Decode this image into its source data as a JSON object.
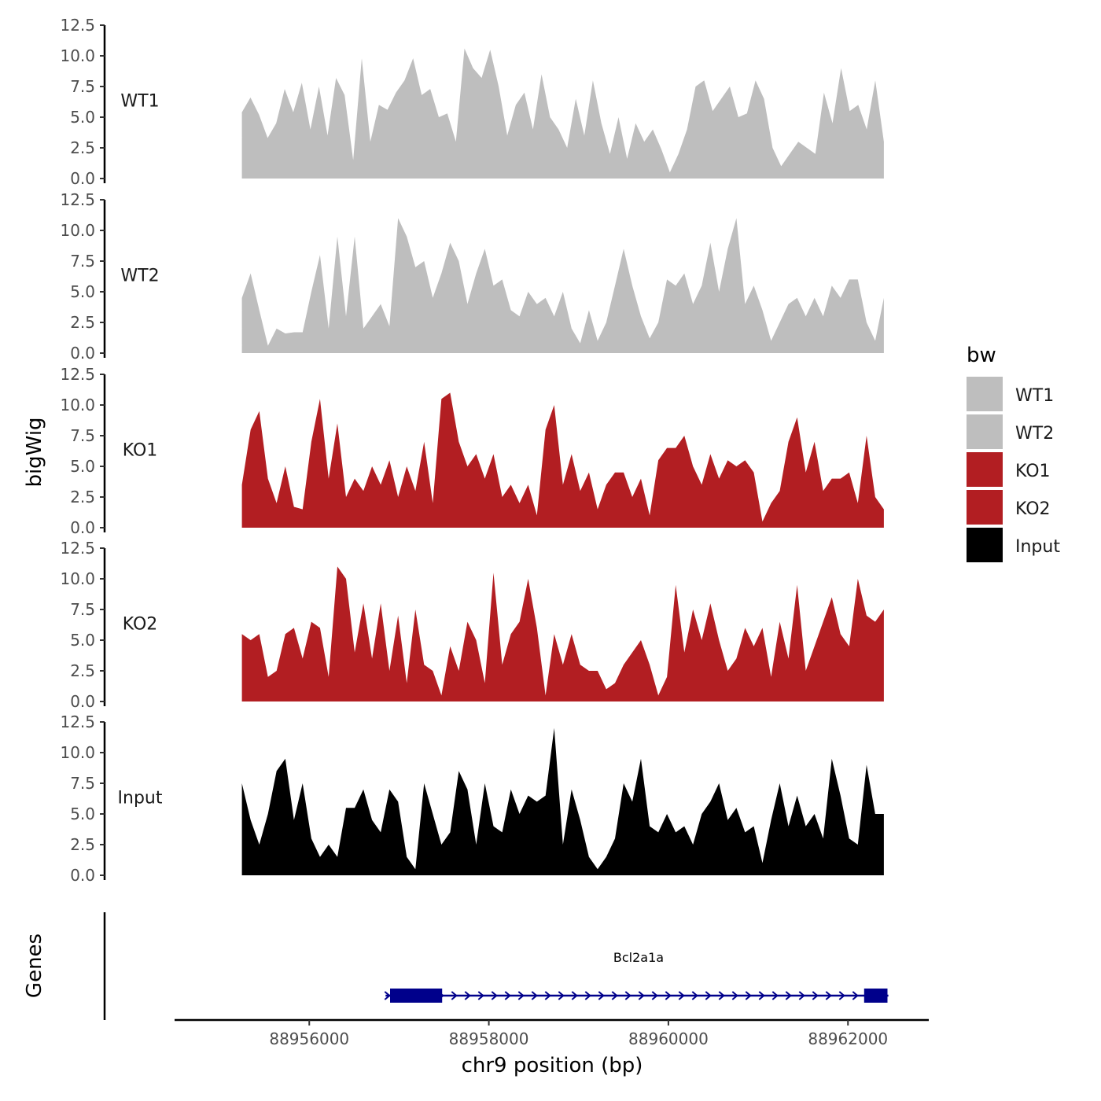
{
  "chart_data": {
    "type": "area",
    "xlabel": "chr9 position (bp)",
    "ylabel": "bigWig",
    "genes_label": "Genes",
    "xlim": [
      88954500,
      88962900
    ],
    "xticks": [
      88956000,
      88958000,
      88960000,
      88962000
    ],
    "xtick_labels": [
      "88956000",
      "88958000",
      "88960000",
      "88962000"
    ],
    "ylim": [
      0,
      12.5
    ],
    "yticks": [
      0,
      2.5,
      5,
      7.5,
      10,
      12.5
    ],
    "ytick_labels": [
      "0.0",
      "2.5",
      "5.0",
      "7.5",
      "10.0",
      "12.5"
    ],
    "track_start": 88955250,
    "track_end": 88962400,
    "series": [
      {
        "name": "WT1",
        "color": "#bebebe",
        "values": [
          5.4,
          6.6,
          5.2,
          3.3,
          4.5,
          7.3,
          5.4,
          7.8,
          4.0,
          7.5,
          3.5,
          8.2,
          6.8,
          1.5,
          9.8,
          3.0,
          6.0,
          5.6,
          7.0,
          8.0,
          9.8,
          6.8,
          7.3,
          5.0,
          5.3,
          3.0,
          10.6,
          9.0,
          8.2,
          10.5,
          7.5,
          3.5,
          6.0,
          7.0,
          4.0,
          8.5,
          5.0,
          4.0,
          2.5,
          6.5,
          3.5,
          8.0,
          4.5,
          2.0,
          5.0,
          1.6,
          4.5,
          3.0,
          4.0,
          2.4,
          0.5,
          2.0,
          4.0,
          7.5,
          8.0,
          5.5,
          6.5,
          7.5,
          5.0,
          5.3,
          8.0,
          6.5,
          2.5,
          1.0,
          2.0,
          3.0,
          2.5,
          2.0,
          7.0,
          4.5,
          9.0,
          5.5,
          6.0,
          4.0,
          8.0,
          3.0
        ]
      },
      {
        "name": "WT2",
        "color": "#bebebe",
        "values": [
          4.5,
          6.5,
          3.5,
          0.6,
          2.0,
          1.6,
          1.7,
          1.7,
          5.0,
          8.0,
          2.0,
          9.5,
          3.0,
          9.5,
          2.0,
          3.0,
          4.0,
          2.2,
          11.0,
          9.5,
          7.0,
          7.5,
          4.5,
          6.5,
          9.0,
          7.5,
          4.0,
          6.5,
          8.5,
          5.5,
          6.0,
          3.5,
          3.0,
          5.0,
          4.0,
          4.5,
          3.0,
          5.0,
          2.0,
          0.8,
          3.5,
          1.0,
          2.5,
          5.5,
          8.5,
          5.5,
          3.0,
          1.2,
          2.5,
          6.0,
          5.5,
          6.5,
          4.0,
          5.5,
          9.0,
          5.0,
          8.5,
          11.0,
          4.0,
          5.5,
          3.5,
          1.0,
          2.5,
          4.0,
          4.5,
          3.0,
          4.5,
          3.0,
          5.5,
          4.5,
          6.0,
          6.0,
          2.5,
          1.0,
          4.5
        ]
      },
      {
        "name": "KO1",
        "color": "#b21e22",
        "values": [
          3.5,
          8.0,
          9.5,
          4.0,
          2.0,
          5.0,
          1.7,
          1.5,
          7.0,
          10.5,
          4.0,
          8.5,
          2.5,
          4.0,
          3.0,
          5.0,
          3.5,
          5.5,
          2.5,
          5.0,
          3.0,
          7.0,
          2.0,
          10.5,
          11.0,
          7.0,
          5.0,
          6.0,
          4.0,
          6.0,
          2.5,
          3.5,
          2.0,
          3.5,
          1.0,
          8.0,
          10.0,
          3.5,
          6.0,
          3.0,
          4.5,
          1.5,
          3.5,
          4.5,
          4.5,
          2.5,
          4.0,
          1.0,
          5.5,
          6.5,
          6.5,
          7.5,
          5.0,
          3.5,
          6.0,
          4.0,
          5.5,
          5.0,
          5.5,
          4.5,
          0.5,
          2.0,
          3.0,
          7.0,
          9.0,
          4.5,
          7.0,
          3.0,
          4.0,
          4.0,
          4.5,
          2.0,
          7.5,
          2.5,
          1.5
        ]
      },
      {
        "name": "KO2",
        "color": "#b21e22",
        "values": [
          5.5,
          5.0,
          5.5,
          2.0,
          2.5,
          5.5,
          6.0,
          3.5,
          6.5,
          6.0,
          2.0,
          11.0,
          10.0,
          4.0,
          8.0,
          3.5,
          8.0,
          2.5,
          7.0,
          1.5,
          7.5,
          3.0,
          2.5,
          0.5,
          4.5,
          2.5,
          6.5,
          5.0,
          1.5,
          10.5,
          3.0,
          5.5,
          6.5,
          10.0,
          6.0,
          0.5,
          5.5,
          3.0,
          5.5,
          3.0,
          2.5,
          2.5,
          1.0,
          1.5,
          3.0,
          4.0,
          5.0,
          3.0,
          0.5,
          2.0,
          9.5,
          4.0,
          7.5,
          5.0,
          8.0,
          5.0,
          2.5,
          3.5,
          6.0,
          4.5,
          6.0,
          2.0,
          6.5,
          3.5,
          9.5,
          2.5,
          4.5,
          6.5,
          8.5,
          5.5,
          4.5,
          10.0,
          7.0,
          6.5,
          7.5
        ]
      },
      {
        "name": "Input",
        "color": "#000000",
        "values": [
          7.5,
          4.5,
          2.5,
          5.0,
          8.5,
          9.5,
          4.5,
          7.5,
          3.0,
          1.5,
          2.5,
          1.5,
          5.5,
          5.5,
          7.0,
          4.5,
          3.5,
          7.0,
          6.0,
          1.5,
          0.5,
          7.5,
          5.0,
          2.5,
          3.5,
          8.5,
          7.0,
          2.5,
          7.5,
          4.0,
          3.5,
          7.0,
          5.0,
          6.5,
          6.0,
          6.5,
          12.0,
          2.5,
          7.0,
          4.5,
          1.5,
          0.5,
          1.5,
          3.0,
          7.5,
          6.0,
          9.5,
          4.0,
          3.5,
          5.0,
          3.5,
          4.0,
          2.5,
          5.0,
          6.0,
          7.5,
          4.5,
          5.5,
          3.5,
          4.0,
          1.0,
          4.5,
          7.5,
          4.0,
          6.5,
          4.0,
          5.0,
          3.0,
          9.5,
          6.5,
          3.0,
          2.5,
          9.0,
          5.0,
          5.0
        ]
      }
    ],
    "gene": {
      "name": "Bcl2a1a",
      "color": "#00008b",
      "start": 88956850,
      "end": 88962450,
      "exons": [
        [
          88956900,
          88957480
        ],
        [
          88962180,
          88962440
        ]
      ],
      "strand": "+"
    },
    "legend": {
      "title": "bw",
      "placement": "right",
      "entries": [
        "WT1",
        "WT2",
        "KO1",
        "KO2",
        "Input"
      ]
    }
  }
}
